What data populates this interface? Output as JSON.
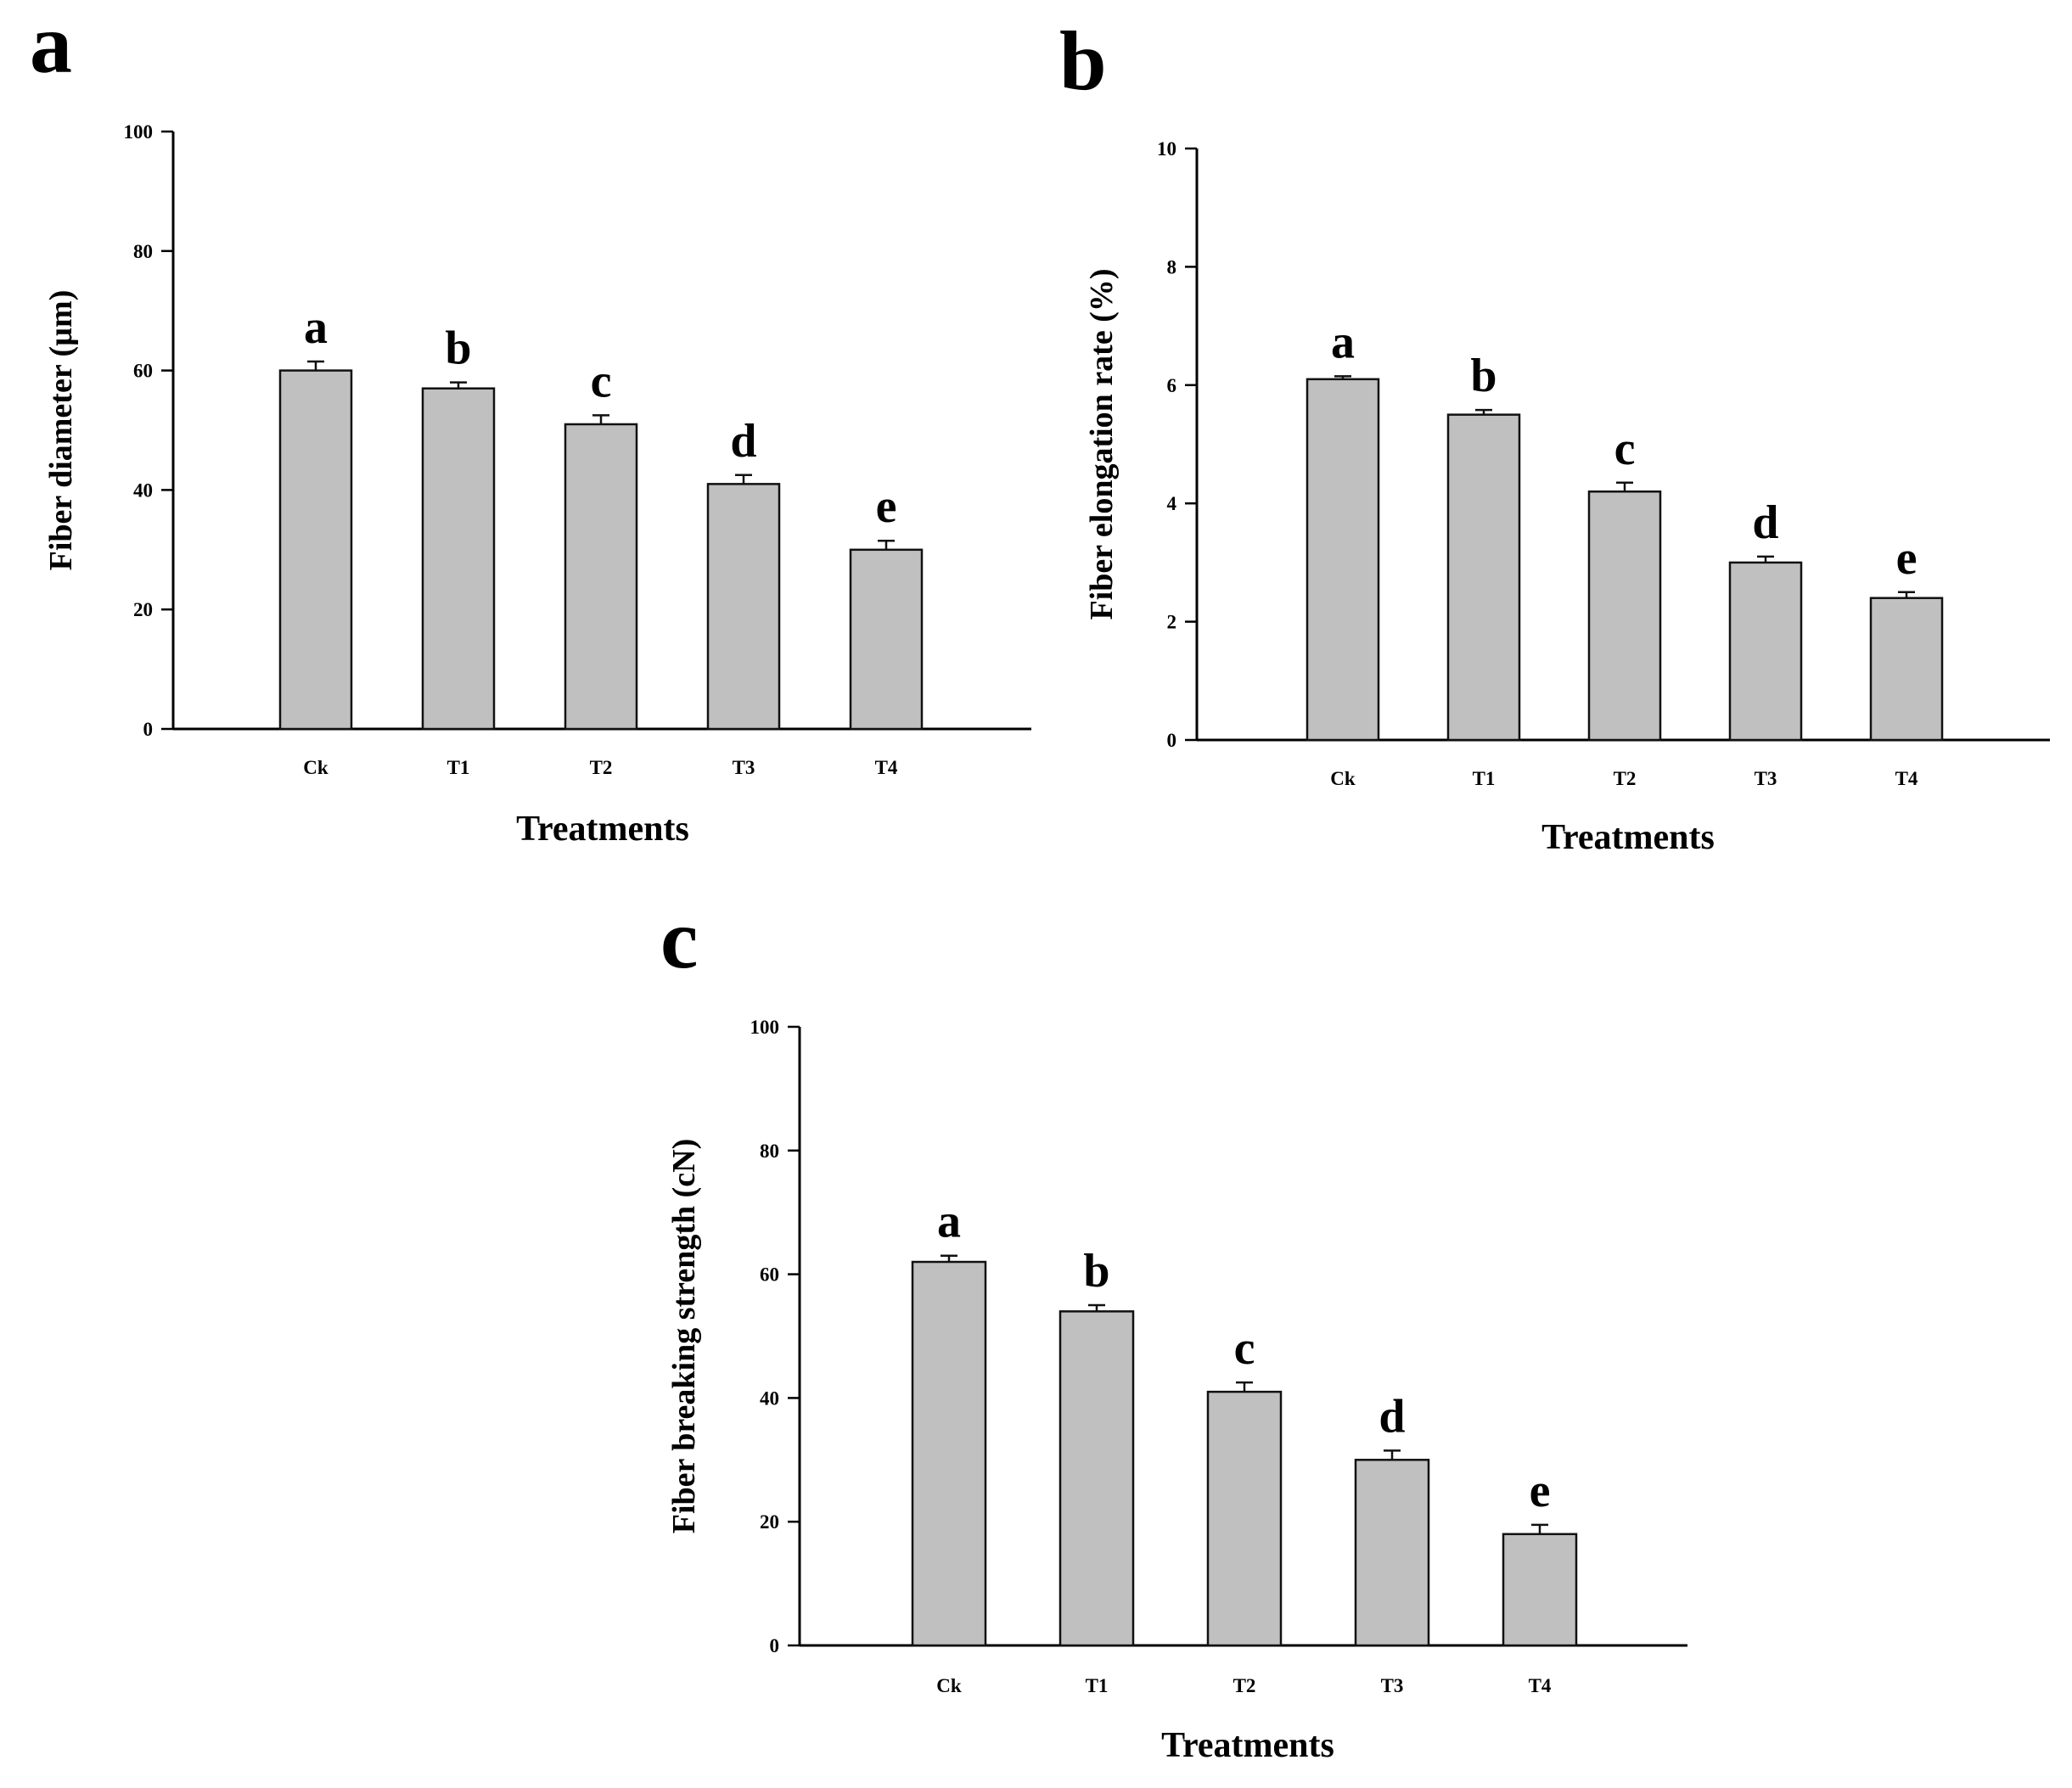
{
  "chart_data": [
    {
      "panel": "a",
      "type": "bar",
      "categories": [
        "Ck",
        "T1",
        "T2",
        "T3",
        "T4"
      ],
      "values": [
        60,
        57,
        51,
        41,
        30
      ],
      "errors": [
        1.5,
        1.0,
        1.5,
        1.5,
        1.5
      ],
      "significance": [
        "a",
        "b",
        "c",
        "d",
        "e"
      ],
      "xlabel": "Treatments",
      "ylabel": "Fiber diameter (µm)",
      "ylim": [
        0,
        100
      ],
      "yticks": [
        0,
        20,
        40,
        60,
        80,
        100
      ],
      "bar_color": "#c0c0c0"
    },
    {
      "panel": "b",
      "type": "bar",
      "categories": [
        "Ck",
        "T1",
        "T2",
        "T3",
        "T4"
      ],
      "values": [
        6.1,
        5.5,
        4.2,
        3.0,
        2.4
      ],
      "errors": [
        0.05,
        0.08,
        0.15,
        0.1,
        0.1
      ],
      "significance": [
        "a",
        "b",
        "c",
        "d",
        "e"
      ],
      "xlabel": "Treatments",
      "ylabel": "Fiber elongation rate (%)",
      "ylim": [
        0,
        10
      ],
      "yticks": [
        0,
        2,
        4,
        6,
        8,
        10
      ],
      "bar_color": "#c0c0c0"
    },
    {
      "panel": "c",
      "type": "bar",
      "categories": [
        "Ck",
        "T1",
        "T2",
        "T3",
        "T4"
      ],
      "values": [
        62,
        54,
        41,
        30,
        18
      ],
      "errors": [
        1.0,
        1.0,
        1.5,
        1.5,
        1.5
      ],
      "significance": [
        "a",
        "b",
        "c",
        "d",
        "e"
      ],
      "xlabel": "Treatments",
      "ylabel": "Fiber breaking strength (cN)",
      "ylim": [
        0,
        100
      ],
      "yticks": [
        0,
        20,
        40,
        60,
        80,
        100
      ],
      "bar_color": "#c0c0c0"
    }
  ]
}
